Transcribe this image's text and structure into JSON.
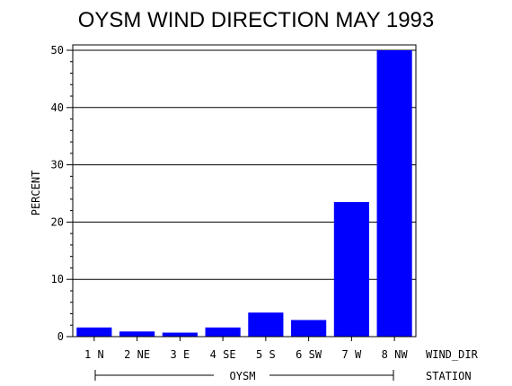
{
  "chart_data": {
    "type": "bar",
    "title": "OYSM WIND DIRECTION MAY 1993",
    "ylabel": "PERCENT",
    "xlabel": "WIND_DIR",
    "group_axis_label": "STATION",
    "group_label": "OYSM",
    "categories": [
      "1 N",
      "2 NE",
      "3 E",
      "4 SE",
      "5 S",
      "6 SW",
      "7 W",
      "8 NW"
    ],
    "values": [
      1.6,
      0.9,
      0.7,
      1.6,
      4.2,
      2.9,
      23.5,
      50.0
    ],
    "ylim": [
      0,
      50
    ],
    "yticks": [
      0,
      10,
      20,
      30,
      40,
      50
    ],
    "grid": true,
    "bar_color": "#0000ff"
  }
}
